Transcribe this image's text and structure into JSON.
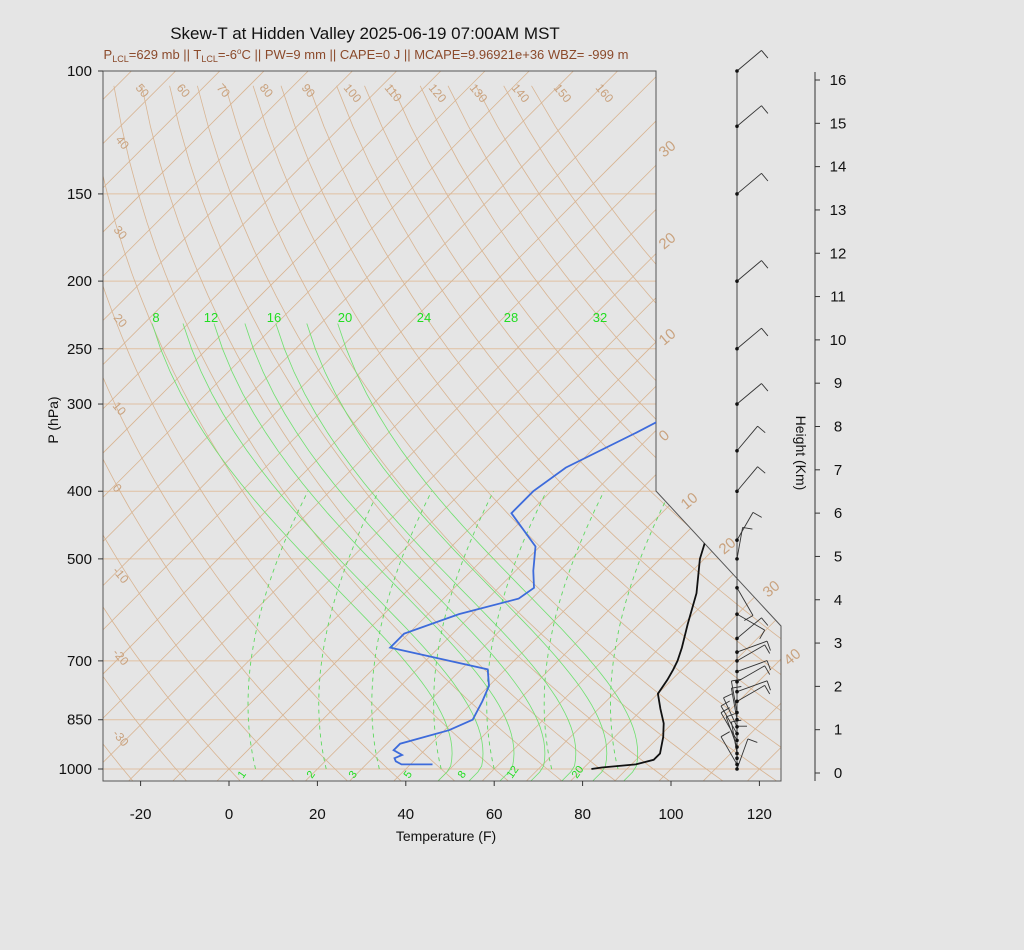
{
  "title": "Skew-T at Hidden Valley 2025-06-19 07:00AM MST",
  "subtitle_parts": {
    "plcl_prefix": "P",
    "plcl_sub": "LCL",
    "plcl_val": "=629 mb || T",
    "tlcl_sub": "LCL",
    "tlcl_val": "=-6",
    "tlcl_deg": "o",
    "rest": "C || PW=9 mm || CAPE=0 J || MCAPE=9.96921e+36 WBZ= -999 m"
  },
  "chart_data": {
    "type": "line",
    "xlabel": "Temperature (F)",
    "ylabel": "P (hPa)",
    "y2label": "Height (Km)",
    "xlim": [
      -28,
      125
    ],
    "ylim": [
      1000,
      100
    ],
    "y_scale": "log",
    "x_ticks": [
      -20,
      0,
      20,
      40,
      60,
      80,
      100,
      120
    ],
    "x_tick_labels": [
      "-20",
      "0",
      "20",
      "40",
      "60",
      "80",
      "100",
      "120"
    ],
    "p_ticks": [
      1000,
      850,
      700,
      500,
      400,
      300,
      250,
      200,
      150,
      100
    ],
    "p_tick_labels": [
      "1000",
      "850",
      "700",
      "500",
      "400",
      "300",
      "250",
      "200",
      "150",
      "100"
    ],
    "height_ticks": [
      0,
      1,
      2,
      3,
      4,
      5,
      6,
      7,
      8,
      9,
      10,
      11,
      12,
      13,
      14,
      15,
      16
    ],
    "height_tick_labels": [
      "0",
      "1",
      "2",
      "3",
      "4",
      "5",
      "6",
      "7",
      "8",
      "9",
      "10",
      "11",
      "12",
      "13",
      "14",
      "15",
      "16"
    ],
    "isotherm_labels": [
      "50",
      "60",
      "70",
      "80",
      "90",
      "100",
      "110",
      "120",
      "130",
      "140",
      "150",
      "160",
      "40",
      "30",
      "20",
      "10",
      "0",
      "-10",
      "-20",
      "-30"
    ],
    "right_labels": [
      "30",
      "20",
      "10",
      "0",
      "10",
      "20",
      "30",
      "40"
    ],
    "mixing_ratio_labels_top": [
      "8",
      "12",
      "16",
      "20",
      "24",
      "28",
      "32"
    ],
    "mixing_ratio_labels_bottom": [
      "1",
      "2",
      "3",
      "5",
      "8",
      "12",
      "20"
    ],
    "series": [
      {
        "color": "#111111",
        "points": [
          [
            1000,
            82
          ],
          [
            995,
            84
          ],
          [
            985,
            91
          ],
          [
            970,
            94
          ],
          [
            950,
            94
          ],
          [
            900,
            91
          ],
          [
            860,
            88
          ],
          [
            820,
            84
          ],
          [
            780,
            80
          ],
          [
            745,
            79
          ],
          [
            720,
            78
          ],
          [
            700,
            77
          ],
          [
            670,
            75
          ],
          [
            620,
            71
          ],
          [
            560,
            66
          ],
          [
            500,
            59
          ],
          [
            450,
            54
          ],
          [
            400,
            48
          ],
          [
            350,
            42
          ],
          [
            300,
            33
          ],
          [
            250,
            24
          ],
          [
            230,
            20
          ],
          [
            200,
            14
          ],
          [
            175,
            12
          ],
          [
            150,
            12
          ],
          [
            130,
            15
          ],
          [
            110,
            21
          ],
          [
            100,
            28
          ]
        ]
      },
      {
        "color": "#3d6bdb",
        "points": [
          [
            985,
            45
          ],
          [
            985,
            38
          ],
          [
            975,
            36
          ],
          [
            965,
            35
          ],
          [
            955,
            36
          ],
          [
            940,
            33
          ],
          [
            920,
            33
          ],
          [
            880,
            41
          ],
          [
            850,
            44
          ],
          [
            800,
            42
          ],
          [
            760,
            40
          ],
          [
            720,
            36
          ],
          [
            670,
            9
          ],
          [
            640,
            9
          ],
          [
            600,
            17
          ],
          [
            570,
            27
          ],
          [
            550,
            28
          ],
          [
            520,
            24
          ],
          [
            480,
            19
          ],
          [
            430,
            6
          ],
          [
            400,
            6
          ],
          [
            370,
            8
          ],
          [
            330,
            16
          ],
          [
            300,
            22
          ],
          [
            280,
            24
          ],
          [
            260,
            24
          ],
          [
            230,
            20
          ],
          [
            200,
            15
          ],
          [
            175,
            14
          ],
          [
            150,
            12
          ],
          [
            140,
            11
          ],
          [
            130,
            12
          ],
          [
            100,
            25
          ]
        ]
      }
    ],
    "wind_barbs": [
      [
        1000,
        "",
        200
      ],
      [
        985,
        "",
        150
      ],
      [
        965,
        "",
        180
      ],
      [
        950,
        "",
        170
      ],
      [
        930,
        "",
        160
      ],
      [
        910,
        "",
        150
      ],
      [
        890,
        "",
        150
      ],
      [
        870,
        "",
        155
      ],
      [
        850,
        "",
        170
      ],
      [
        830,
        "",
        170
      ],
      [
        800,
        "",
        240
      ],
      [
        775,
        "",
        250
      ],
      [
        750,
        "",
        240
      ],
      [
        725,
        "",
        250
      ],
      [
        700,
        "",
        240
      ],
      [
        680,
        "",
        250
      ],
      [
        650,
        "",
        230
      ],
      [
        600,
        "",
        300
      ],
      [
        550,
        "",
        330
      ],
      [
        500,
        "",
        190
      ],
      [
        470,
        "",
        210
      ],
      [
        400,
        "",
        220
      ],
      [
        350,
        "",
        220
      ],
      [
        300,
        "",
        230
      ],
      [
        250,
        "",
        230
      ],
      [
        200,
        "",
        230
      ],
      [
        150,
        "",
        230
      ],
      [
        120,
        "",
        230
      ],
      [
        100,
        "",
        230
      ]
    ]
  }
}
